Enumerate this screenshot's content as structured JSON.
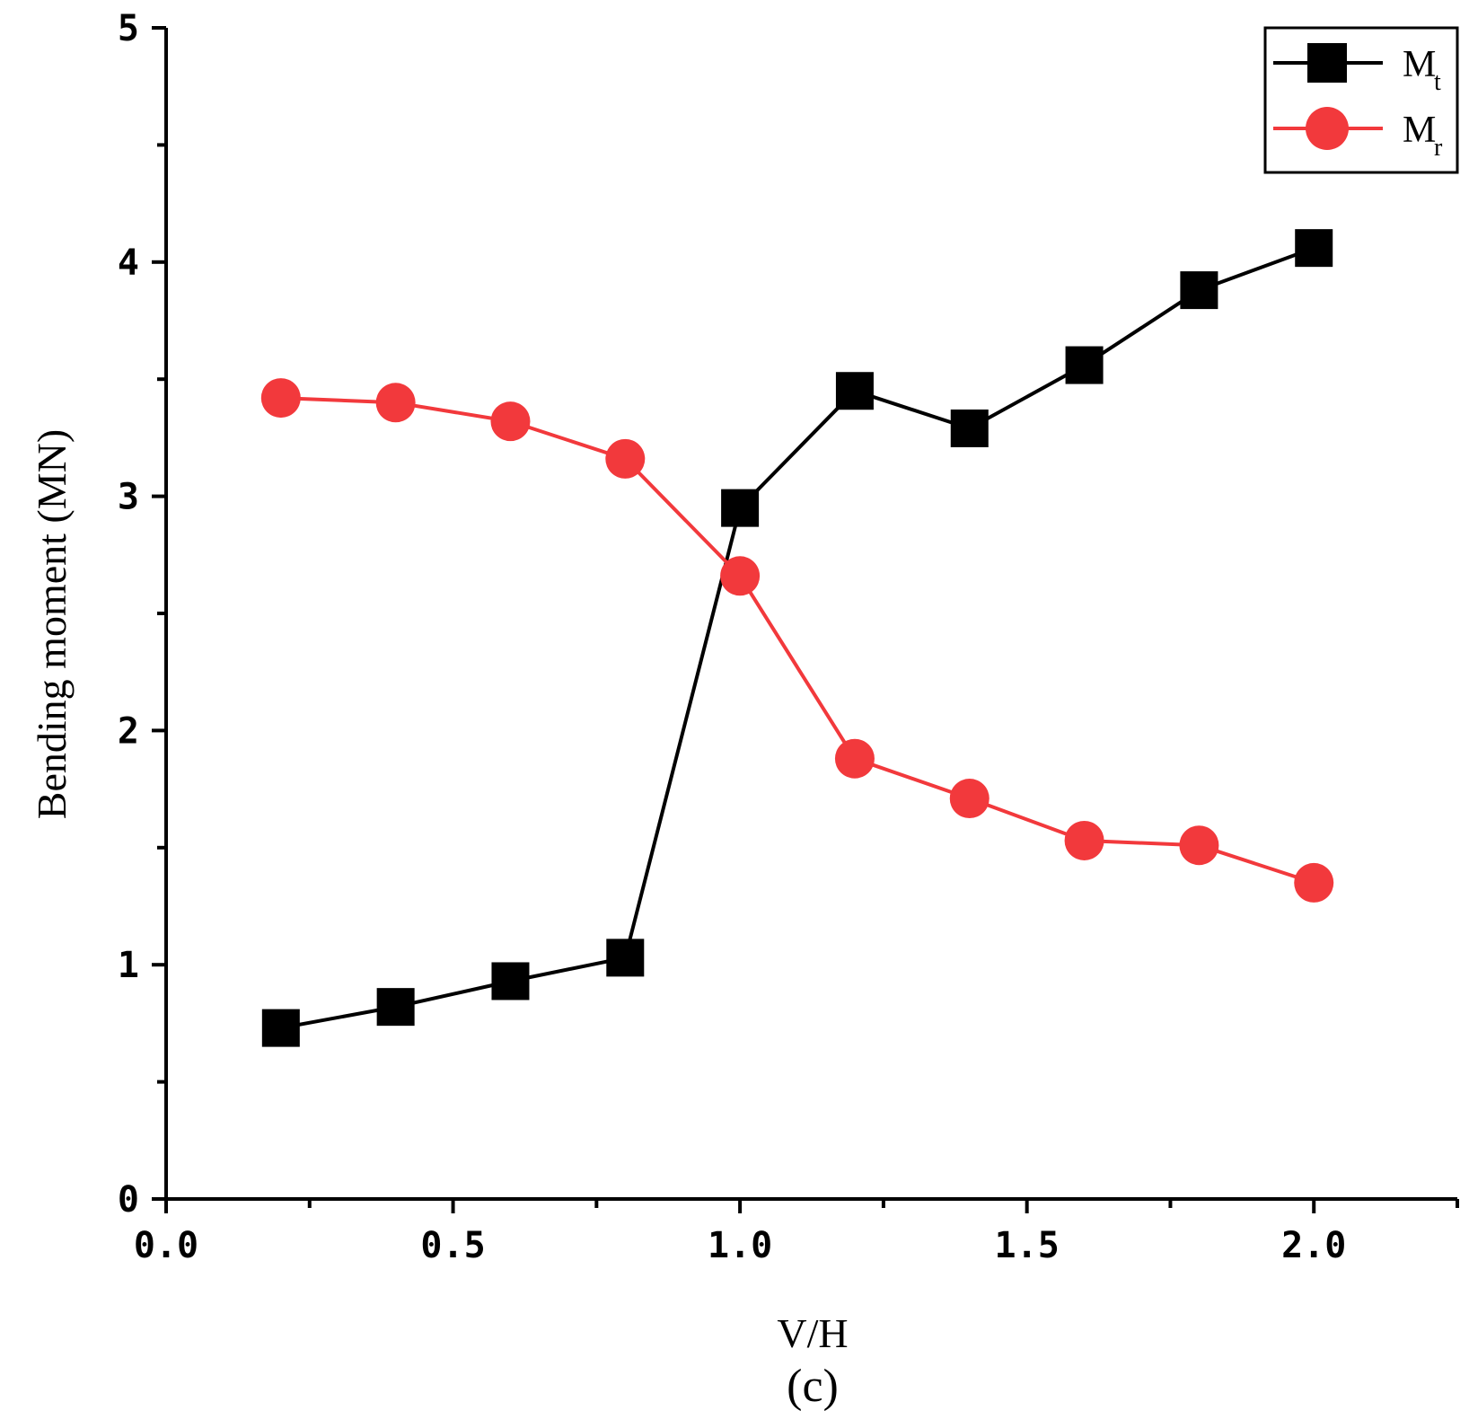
{
  "chart_data": {
    "type": "line",
    "title": "",
    "xlabel": "V/H",
    "ylabel": "Bending moment (MN)",
    "caption": "(c)",
    "xlim": [
      0.0,
      2.25
    ],
    "ylim": [
      0,
      5
    ],
    "x_ticks": [
      "0.0",
      "0.5",
      "1.0",
      "1.5",
      "2.0"
    ],
    "y_ticks": [
      "0",
      "1",
      "2",
      "3",
      "4",
      "5"
    ],
    "x": [
      0.2,
      0.4,
      0.6,
      0.8,
      1.0,
      1.2,
      1.4,
      1.6,
      1.8,
      2.0
    ],
    "series": [
      {
        "name": "Mt",
        "label_main": "M",
        "label_sub": "t",
        "color": "#000000",
        "marker": "square",
        "values": [
          0.73,
          0.82,
          0.93,
          1.03,
          2.95,
          3.45,
          3.29,
          3.56,
          3.88,
          4.06
        ]
      },
      {
        "name": "Mr",
        "label_main": "M",
        "label_sub": "r",
        "color": "#f2393c",
        "marker": "circle",
        "values": [
          3.42,
          3.4,
          3.32,
          3.16,
          2.66,
          1.88,
          1.71,
          1.53,
          1.51,
          1.35
        ]
      }
    ],
    "legend_position": "top-right",
    "grid": false
  }
}
